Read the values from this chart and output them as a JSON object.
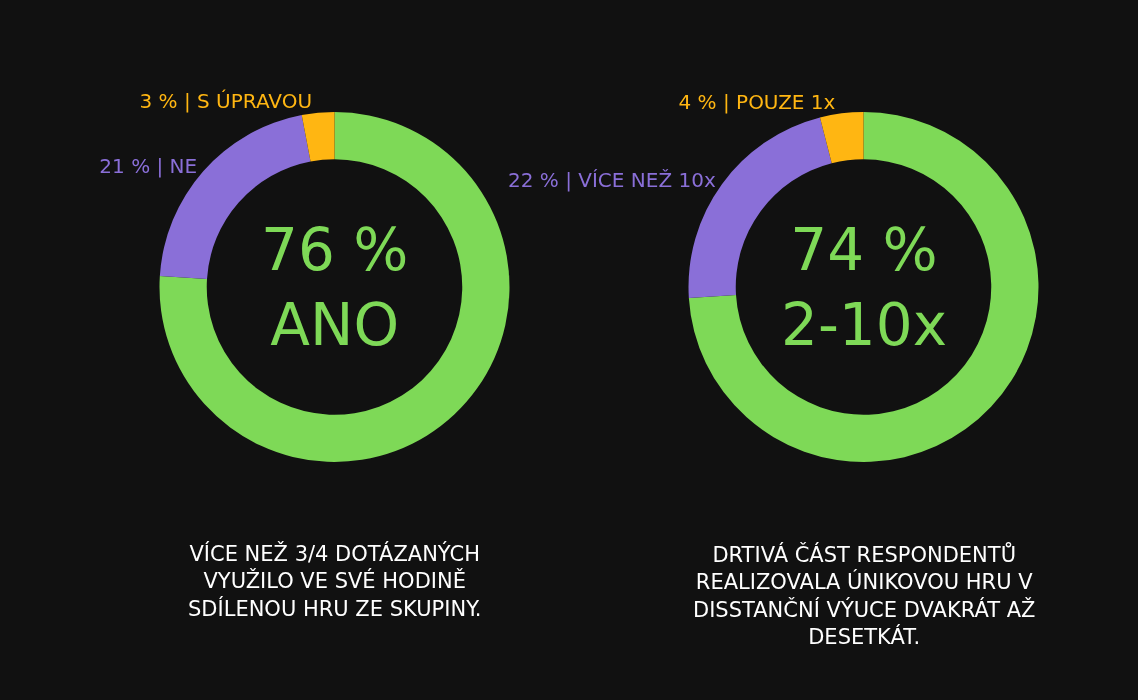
{
  "chart_data": [
    {
      "type": "donut",
      "categories": [
        "76 %\nANO",
        "21 % | NE",
        "3 % | S ÚPRAVOU"
      ],
      "values": [
        76,
        21,
        3
      ],
      "colors": [
        "#7ed957",
        "#8a6fd8",
        "#ffb612"
      ],
      "annotations": [
        "VÍCE NEŽ 3/4 DOTÁZANÝCH\nVYUŽILO VE SVÉ HODINĚ\nSDÍLENOU HRU ZE SKUPINY."
      ]
    },
    {
      "type": "donut",
      "categories": [
        "74 %\n2-10x",
        "22 % | VÍCE NEŽ 10x",
        "4 % | POUZE 1x"
      ],
      "values": [
        74,
        22,
        4
      ],
      "colors": [
        "#7ed957",
        "#8a6fd8",
        "#ffb612"
      ],
      "annotations": [
        "DRTIVÁ ČÁST RESPONDENTŮ\nREALIZOVALA ÚNIKOVOU HRU V\nDISSTANČNÍ VÝUCE DVAKRÁT AŽ\nDESETKÁT."
      ]
    }
  ]
}
